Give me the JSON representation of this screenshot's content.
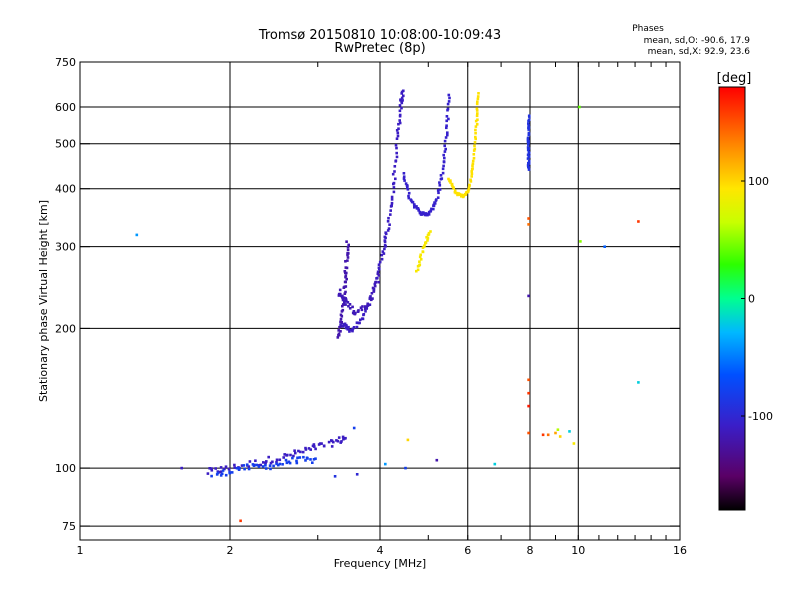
{
  "chart_data": {
    "type": "scatter",
    "title": "Tromsø 20150810 10:08:00-10:09:43",
    "subtitle": "RwPretec (8p)",
    "xlabel": "Frequency [MHz]",
    "ylabel": "Stationary phase Virtual Height [km]",
    "x_scale": "log",
    "y_scale": "log",
    "xlim": [
      1,
      16
    ],
    "ylim": [
      70,
      750
    ],
    "x_ticks": [
      {
        "value": 1,
        "label": "1"
      },
      {
        "value": 2,
        "label": "2"
      },
      {
        "value": 4,
        "label": "4"
      },
      {
        "value": 6,
        "label": "6"
      },
      {
        "value": 8,
        "label": "8"
      },
      {
        "value": 10,
        "label": "10"
      },
      {
        "value": 16,
        "label": "16"
      }
    ],
    "y_ticks": [
      {
        "value": 75,
        "label": "75"
      },
      {
        "value": 100,
        "label": "100"
      },
      {
        "value": 200,
        "label": "200"
      },
      {
        "value": 300,
        "label": "300"
      },
      {
        "value": 400,
        "label": "400"
      },
      {
        "value": 500,
        "label": "500"
      },
      {
        "value": 600,
        "label": "600"
      },
      {
        "value": 750,
        "label": "750"
      }
    ],
    "grid": true,
    "phase_box": {
      "title": "Phases",
      "line_o": "mean, sd,O: -90.6, 17.9",
      "line_x": "mean, sd,X:  92.9, 23.6"
    },
    "colorbar": {
      "label": "[deg]",
      "range": [
        -180,
        180
      ],
      "ticks": [
        {
          "value": 100,
          "label": "100"
        },
        {
          "value": 0,
          "label": "0"
        },
        {
          "value": -100,
          "label": "-100"
        }
      ]
    },
    "traces": [
      {
        "name": "O low band",
        "phase": -110,
        "jitter": 0.035,
        "points": [
          [
            1.8,
            98
          ],
          [
            2.0,
            100
          ],
          [
            2.3,
            103
          ],
          [
            2.6,
            106
          ],
          [
            2.9,
            110
          ],
          [
            3.2,
            113
          ],
          [
            3.45,
            117
          ]
        ]
      },
      {
        "name": "O low band lower",
        "phase": -80,
        "jitter": 0.03,
        "points": [
          [
            1.85,
            96
          ],
          [
            2.1,
            100
          ],
          [
            2.4,
            101
          ],
          [
            2.7,
            104
          ],
          [
            3.0,
            104
          ]
        ]
      },
      {
        "name": "O F1 lower",
        "phase": -120,
        "jitter": 0.02,
        "points": [
          [
            3.3,
            190
          ],
          [
            3.35,
            210
          ],
          [
            3.4,
            240
          ],
          [
            3.42,
            270
          ],
          [
            3.45,
            310
          ]
        ]
      },
      {
        "name": "O F1 upper",
        "phase": -110,
        "jitter": 0.02,
        "points": [
          [
            3.35,
            205
          ],
          [
            3.5,
            198
          ],
          [
            3.7,
            210
          ],
          [
            3.9,
            245
          ],
          [
            4.05,
            290
          ],
          [
            4.15,
            330
          ],
          [
            4.25,
            400
          ],
          [
            4.33,
            500
          ],
          [
            4.4,
            600
          ],
          [
            4.45,
            650
          ]
        ]
      },
      {
        "name": "O F1 branch",
        "phase": -115,
        "jitter": 0.025,
        "points": [
          [
            3.3,
            240
          ],
          [
            3.4,
            230
          ],
          [
            3.55,
            215
          ],
          [
            3.8,
            225
          ],
          [
            4.0,
            265
          ]
        ]
      },
      {
        "name": "O F2 cusp",
        "phase": -105,
        "jitter": 0.015,
        "points": [
          [
            4.45,
            430
          ],
          [
            4.6,
            380
          ],
          [
            4.8,
            355
          ],
          [
            5.0,
            352
          ],
          [
            5.2,
            375
          ],
          [
            5.35,
            440
          ],
          [
            5.45,
            530
          ],
          [
            5.5,
            650
          ]
        ]
      },
      {
        "name": "X F2 cusp",
        "phase": 95,
        "jitter": 0.01,
        "points": [
          [
            5.5,
            420
          ],
          [
            5.7,
            390
          ],
          [
            5.9,
            385
          ],
          [
            6.05,
            400
          ],
          [
            6.15,
            460
          ],
          [
            6.25,
            550
          ],
          [
            6.3,
            650
          ]
        ]
      },
      {
        "name": "X oblique",
        "phase": 90,
        "jitter": 0.015,
        "points": [
          [
            4.75,
            265
          ],
          [
            4.9,
            300
          ],
          [
            5.05,
            325
          ]
        ]
      },
      {
        "name": "8 MHz column",
        "phase": -90,
        "jitter": 0.01,
        "points": [
          [
            7.95,
            440
          ],
          [
            7.95,
            480
          ],
          [
            7.95,
            520
          ],
          [
            7.95,
            580
          ]
        ]
      }
    ],
    "points": [
      {
        "x": 1.3,
        "y": 318,
        "phase": -40
      },
      {
        "x": 1.6,
        "y": 100,
        "phase": -110
      },
      {
        "x": 2.1,
        "y": 77,
        "phase": 160
      },
      {
        "x": 3.25,
        "y": 96,
        "phase": -90
      },
      {
        "x": 3.6,
        "y": 97,
        "phase": -100
      },
      {
        "x": 4.1,
        "y": 102,
        "phase": -40
      },
      {
        "x": 4.5,
        "y": 100,
        "phase": -80
      },
      {
        "x": 5.2,
        "y": 104,
        "phase": -120
      },
      {
        "x": 6.8,
        "y": 102,
        "phase": -20
      },
      {
        "x": 4.55,
        "y": 115,
        "phase": 100
      },
      {
        "x": 7.95,
        "y": 235,
        "phase": -120
      },
      {
        "x": 7.95,
        "y": 335,
        "phase": 140
      },
      {
        "x": 7.95,
        "y": 345,
        "phase": 150
      },
      {
        "x": 7.95,
        "y": 155,
        "phase": 150
      },
      {
        "x": 7.95,
        "y": 145,
        "phase": 160
      },
      {
        "x": 7.95,
        "y": 136,
        "phase": 170
      },
      {
        "x": 7.95,
        "y": 119,
        "phase": 150
      },
      {
        "x": 8.5,
        "y": 118,
        "phase": 160
      },
      {
        "x": 8.7,
        "y": 118,
        "phase": 140
      },
      {
        "x": 9.0,
        "y": 119,
        "phase": 120
      },
      {
        "x": 9.1,
        "y": 121,
        "phase": 60
      },
      {
        "x": 9.2,
        "y": 117,
        "phase": 100
      },
      {
        "x": 9.6,
        "y": 120,
        "phase": -20
      },
      {
        "x": 9.8,
        "y": 113,
        "phase": 90
      },
      {
        "x": 10.1,
        "y": 308,
        "phase": 50
      },
      {
        "x": 10.05,
        "y": 600,
        "phase": 40
      },
      {
        "x": 11.3,
        "y": 300,
        "phase": -60
      },
      {
        "x": 13.2,
        "y": 340,
        "phase": 160
      },
      {
        "x": 13.2,
        "y": 153,
        "phase": -20
      },
      {
        "x": 3.55,
        "y": 122,
        "phase": -80
      }
    ]
  }
}
